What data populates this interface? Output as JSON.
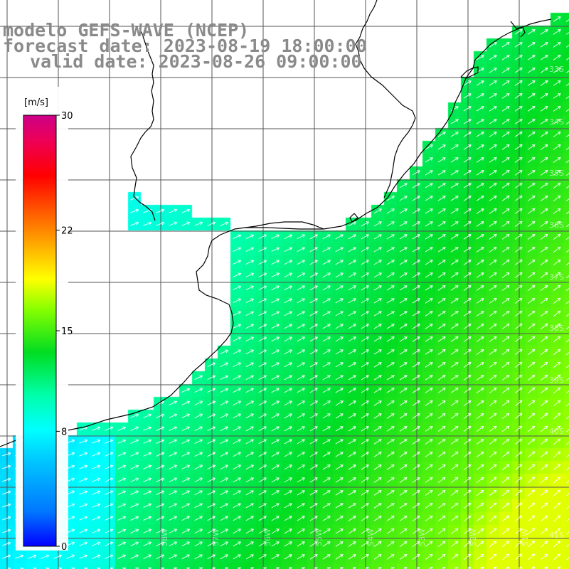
{
  "header": {
    "title_model": "modelo GEFS-WAVE (NCEP)",
    "forecast_date": "forecast date: 2023-08-19 18:00:00",
    "valid_date": "valid date: 2023-08-26 09:00:00"
  },
  "colorbar": {
    "unit": "[m/s]",
    "ticks": [
      "30",
      "22",
      "15",
      "8",
      "0"
    ],
    "tick_values": [
      30,
      22,
      15,
      8,
      0
    ],
    "range": [
      0,
      30
    ],
    "colors": [
      "#0000ff",
      "#0088ff",
      "#00ddff",
      "#00ffaa",
      "#00ee00",
      "#aaff00",
      "#ffff00",
      "#ffaa00",
      "#ff5500",
      "#ff0000",
      "#ee0066",
      "#cc0088"
    ]
  },
  "map": {
    "lat_labels": [
      "33S",
      "34S",
      "35S",
      "36S",
      "37S",
      "38S",
      "39S",
      "40S",
      "41S"
    ],
    "lon_labels": [
      "58W",
      "57W",
      "56W",
      "55W",
      "54W",
      "53W",
      "52W",
      "51W"
    ],
    "field_colors": {
      "land": "#ffffff",
      "grid_line": "#555555",
      "coast_line": "#000000",
      "arrow": "#ffffff"
    }
  }
}
